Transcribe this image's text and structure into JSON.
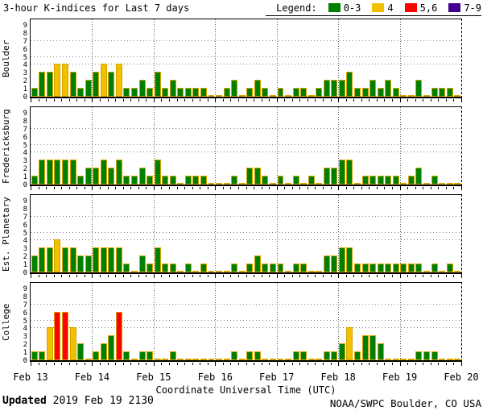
{
  "header": {
    "title": "3-hour K-indices for Last 7 days",
    "legend_label": "Legend:",
    "legend_items": [
      {
        "label": "0-3",
        "color": "#008000"
      },
      {
        "label": "4",
        "color": "#EFC100"
      },
      {
        "label": "5,6",
        "color": "#FF0000"
      },
      {
        "label": "7-9",
        "color": "#400090"
      }
    ]
  },
  "colors": {
    "green_0_3": "#008000",
    "yellow_4": "#EFC100",
    "red_5_6": "#FF0000",
    "purple_7_9": "#400090",
    "bar_outline": "#D9A300"
  },
  "x_axis": {
    "title": "Coordinate Universal Time (UTC)",
    "tick_labels": [
      "Feb 13",
      "Feb 14",
      "Feb 15",
      "Feb 16",
      "Feb 17",
      "Feb 18",
      "Feb 19",
      "Feb 20"
    ]
  },
  "footer": {
    "updated_label": "Updated",
    "updated_value": "2019 Feb 19 2130",
    "credit": "NOAA/SWPC Boulder, CO USA"
  },
  "chart_data": {
    "type": "bar",
    "ylim": [
      0,
      9
    ],
    "y_ticks": [
      0,
      1,
      2,
      3,
      4,
      5,
      6,
      7,
      8,
      9
    ],
    "grid_horizontal_at": [
      4,
      5,
      7
    ],
    "grid_vertical": "daily",
    "slots_per_day": 8,
    "interval_hours": 3,
    "days": [
      "Feb 13",
      "Feb 14",
      "Feb 15",
      "Feb 16",
      "Feb 17",
      "Feb 18",
      "Feb 19"
    ],
    "color_coding": {
      "0-3": "green",
      "4": "yellow",
      "5,6": "red",
      "7-9": "purple"
    },
    "series": [
      {
        "name": "Boulder",
        "values": [
          1,
          3,
          3,
          4,
          4,
          3,
          1,
          2,
          3,
          4,
          3,
          4,
          1,
          1,
          2,
          1,
          3,
          1,
          2,
          1,
          1,
          1,
          1,
          0,
          0,
          1,
          2,
          0,
          1,
          2,
          1,
          0,
          1,
          0,
          1,
          1,
          0,
          1,
          2,
          2,
          2,
          3,
          1,
          1,
          2,
          1,
          2,
          1,
          0,
          0,
          2,
          0,
          1,
          1,
          1,
          0
        ]
      },
      {
        "name": "Fredericksburg",
        "values": [
          1,
          3,
          3,
          3,
          3,
          3,
          1,
          2,
          2,
          3,
          2,
          3,
          1,
          1,
          2,
          1,
          3,
          1,
          1,
          0,
          1,
          1,
          1,
          0,
          0,
          0,
          1,
          0,
          2,
          2,
          1,
          0,
          1,
          0,
          1,
          0,
          1,
          0,
          2,
          2,
          3,
          3,
          0,
          1,
          1,
          1,
          1,
          1,
          0,
          1,
          2,
          0,
          1,
          0,
          0,
          0
        ]
      },
      {
        "name": "Est. Planetary",
        "values": [
          2,
          3,
          3,
          4,
          3,
          3,
          2,
          2,
          3,
          3,
          3,
          3,
          1,
          0,
          2,
          1,
          3,
          1,
          1,
          0,
          1,
          0,
          1,
          0,
          0,
          0,
          1,
          0,
          1,
          2,
          1,
          1,
          1,
          0,
          1,
          1,
          0,
          0,
          2,
          2,
          3,
          3,
          1,
          1,
          1,
          1,
          1,
          1,
          1,
          1,
          1,
          0,
          1,
          0,
          1,
          0
        ]
      },
      {
        "name": "College",
        "values": [
          1,
          1,
          4,
          6,
          6,
          4,
          2,
          0,
          1,
          2,
          3,
          6,
          1,
          0,
          1,
          1,
          0,
          0,
          1,
          0,
          0,
          0,
          0,
          0,
          0,
          0,
          1,
          0,
          1,
          1,
          0,
          0,
          0,
          0,
          1,
          1,
          0,
          0,
          1,
          1,
          2,
          4,
          1,
          3,
          3,
          2,
          0,
          0,
          0,
          0,
          1,
          1,
          1,
          0,
          0,
          0
        ]
      }
    ]
  }
}
